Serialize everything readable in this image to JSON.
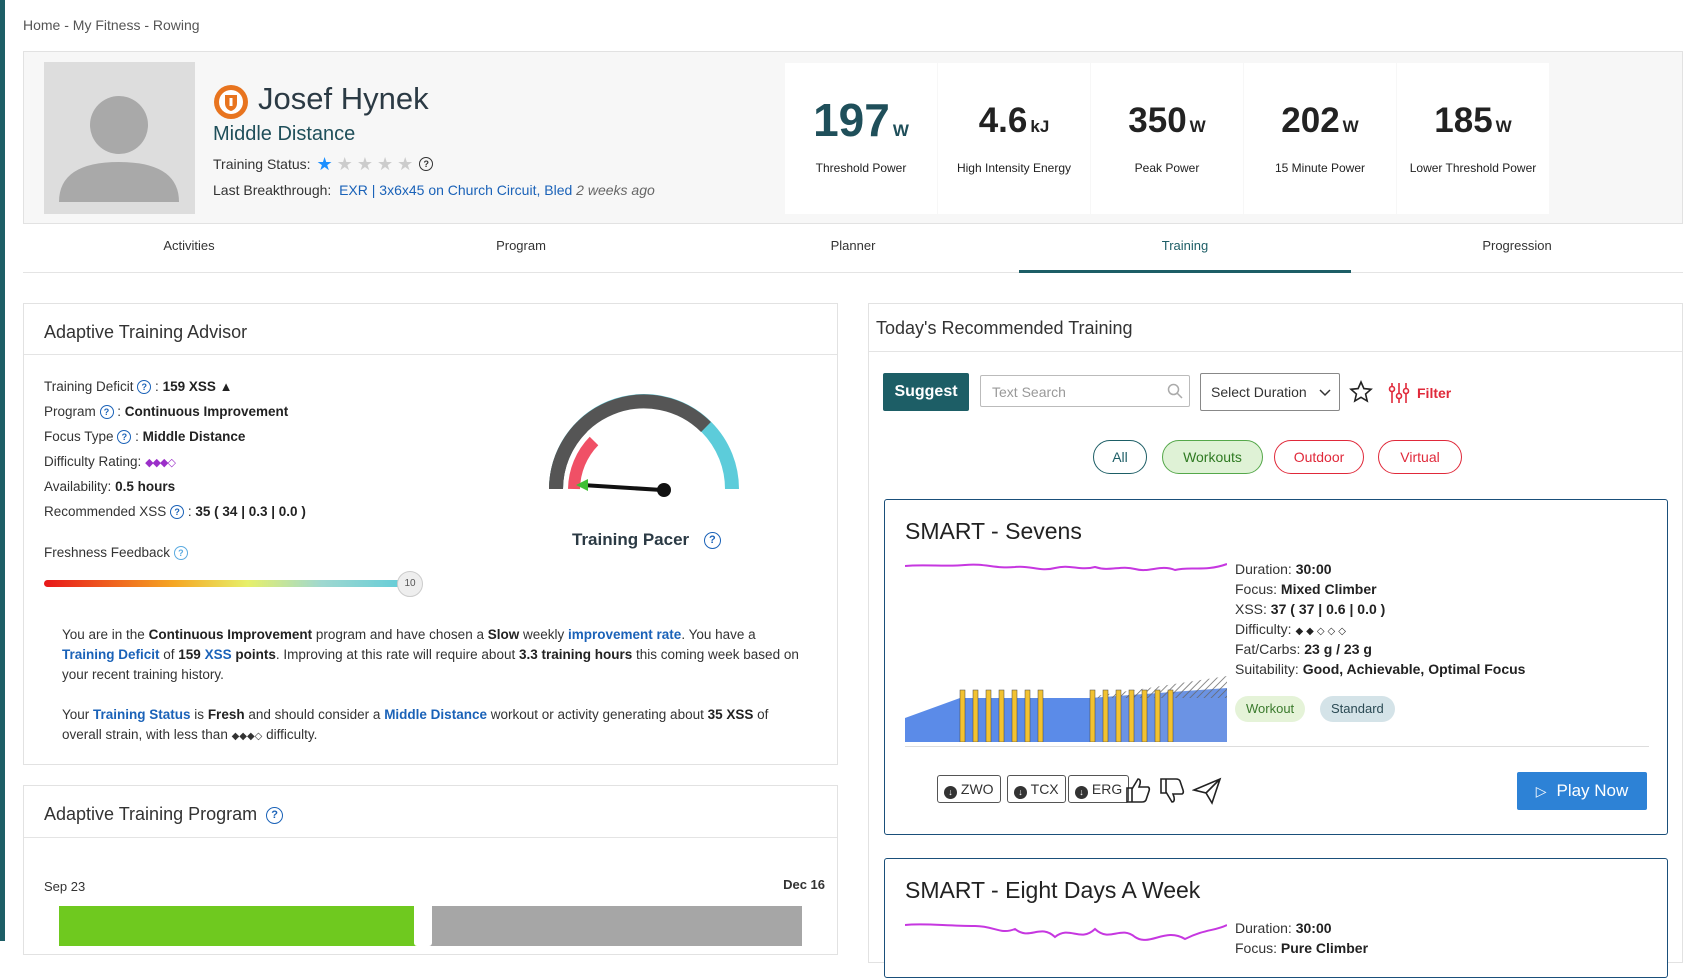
{
  "breadcrumb": "Home - My Fitness - Rowing",
  "profile": {
    "name": "Josef Hynek",
    "type": "Middle Distance",
    "training_status_label": "Training Status:",
    "training_status_stars": 1,
    "last_breakthrough_label": "Last Breakthrough:",
    "last_breakthrough_link": "EXR | 3x6x45 on Church Circuit, Bled",
    "last_breakthrough_when": "2 weeks ago"
  },
  "metrics": [
    {
      "value": "197",
      "unit": "W",
      "label": "Threshold Power"
    },
    {
      "value": "4.6",
      "unit": "kJ",
      "label": "High Intensity Energy"
    },
    {
      "value": "350",
      "unit": "W",
      "label": "Peak Power"
    },
    {
      "value": "202",
      "unit": "W",
      "label": "15 Minute Power"
    },
    {
      "value": "185",
      "unit": "W",
      "label": "Lower Threshold Power"
    }
  ],
  "tabs": [
    "Activities",
    "Program",
    "Planner",
    "Training",
    "Progression"
  ],
  "active_tab": "Training",
  "advisor": {
    "title": "Adaptive Training Advisor",
    "deficit_label": "Training Deficit",
    "deficit_value": "159 XSS",
    "program_label": "Program",
    "program_value": "Continuous Improvement",
    "focus_label": "Focus Type",
    "focus_value": "Middle Distance",
    "difficulty_label": "Difficulty Rating:",
    "difficulty_value": "◆◆◆◇",
    "availability_label": "Availability:",
    "availability_value": "0.5 hours",
    "rec_xss_label": "Recommended XSS",
    "rec_xss_total": "35",
    "rec_xss_a": "34",
    "rec_xss_b": "0.3",
    "rec_xss_c": "0.0",
    "freshness_label": "Freshness Feedback",
    "freshness_value": "10",
    "pacer_label": "Training Pacer",
    "para1": {
      "t1": "You are in the ",
      "b1": "Continuous Improvement",
      "t2": " program and have chosen a ",
      "b2": "Slow",
      "t3": " weekly ",
      "l1": "improvement rate",
      "t4": ". You have a ",
      "l2": "Training Deficit",
      "t5": " of ",
      "b3": "159",
      "l3": "XSS",
      "b4": " points",
      "t6": ". Improving at this rate will require about ",
      "b5": "3.3 training hours",
      "t7": " this coming week based on your recent training history."
    },
    "para2": {
      "t1": "Your ",
      "l1": "Training Status",
      "t2": " is ",
      "b1": "Fresh",
      "t3": " and should consider a ",
      "l2": "Middle Distance",
      "t4": " workout or activity generating about ",
      "b2": "35 XSS",
      "t5": " of overall strain, with less than ",
      "dif": "◆◆◆◇",
      "t6": " difficulty."
    }
  },
  "program": {
    "title": "Adaptive Training Program",
    "start": "Sep 23",
    "end": "Dec 16",
    "progress": 0.49
  },
  "recommended": {
    "title": "Today's Recommended Training",
    "suggest": "Suggest",
    "search_placeholder": "Text Search",
    "duration_select": "Select Duration",
    "filter": "Filter",
    "pills": [
      "All",
      "Workouts",
      "Outdoor",
      "Virtual"
    ],
    "cards": [
      {
        "title": "SMART - Sevens",
        "duration_label": "Duration:",
        "duration": "30:00",
        "focus_label": "Focus:",
        "focus": "Mixed Climber",
        "xss_label": "XSS:",
        "xss": "37",
        "xss_a": "37",
        "xss_b": "0.6",
        "xss_c": "0.0",
        "difficulty_label": "Difficulty:",
        "difficulty": "◆◆◇◇◇",
        "fat_label": "Fat/Carbs:",
        "fat": "23 g / 23 g",
        "suit_label": "Suitability:",
        "suit": "Good, Achievable, Optimal Focus",
        "tags": [
          "Workout",
          "Standard"
        ],
        "downloads": [
          "ZWO",
          "TCX",
          "ERG"
        ],
        "play": "Play Now"
      },
      {
        "title": "SMART - Eight Days A Week",
        "duration_label": "Duration:",
        "duration": "30:00",
        "focus_label": "Focus:",
        "focus": "Pure Climber"
      }
    ]
  },
  "colors": {
    "brand": "#1d5e66",
    "link": "#1a62b8",
    "orange": "#f39a1b",
    "red": "#e0001b",
    "card_border": "#1a4f7a"
  }
}
